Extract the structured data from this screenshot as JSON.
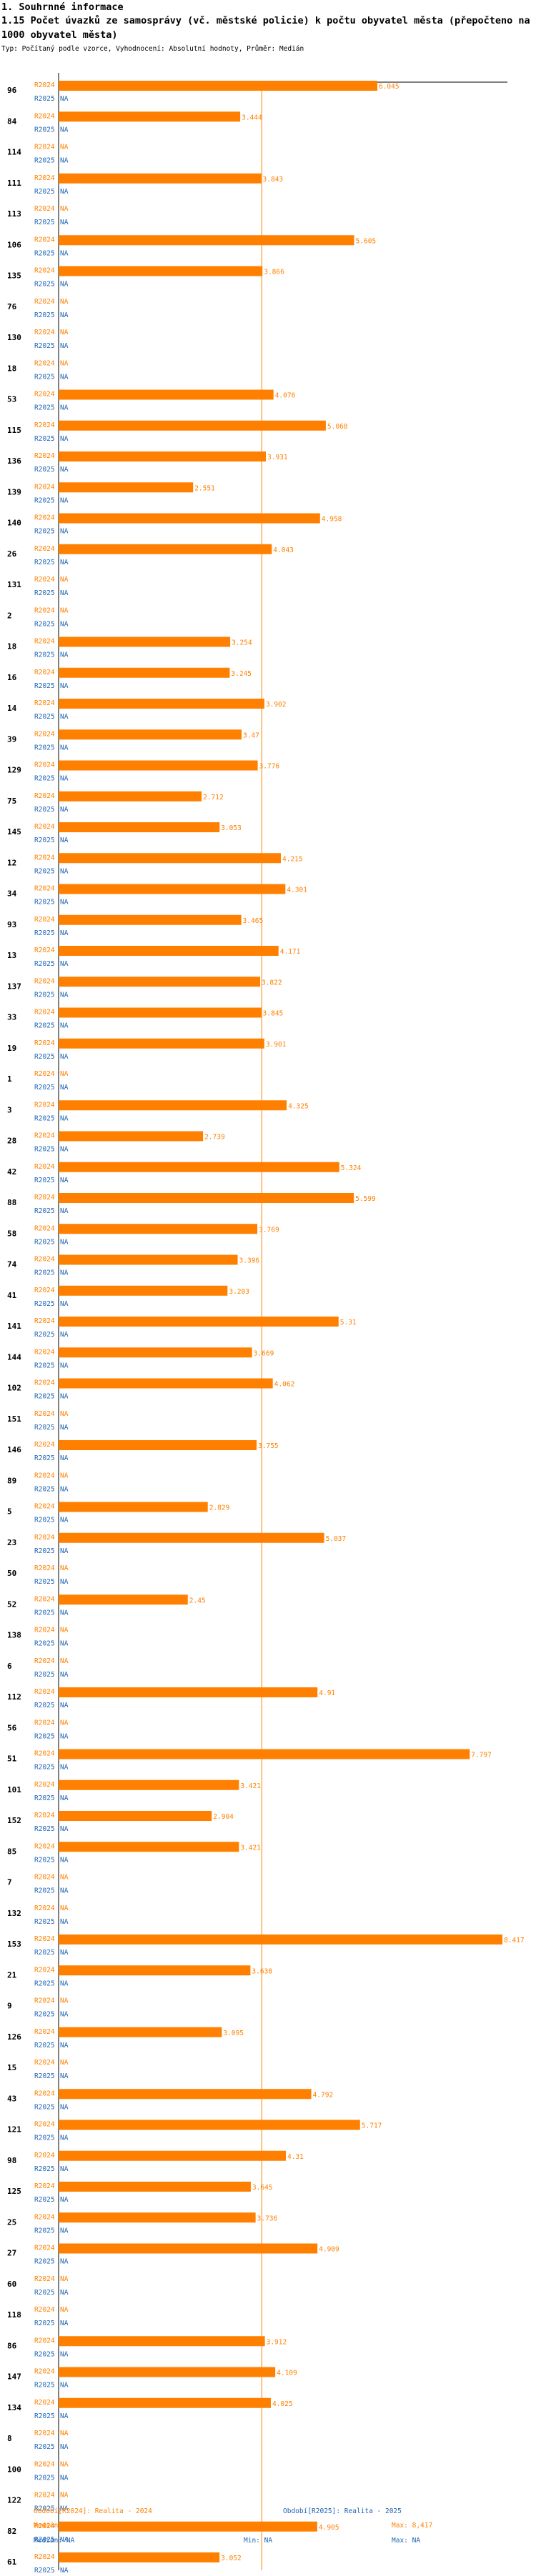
{
  "header": {
    "section": "1. Souhrnné informace",
    "title": "1.15 Počet úvazků ze samosprávy (vč. městské policie) k počtu obyvatel města (přepočteno na 1000 obyvatel města)",
    "typ": "Typ: Počítaný podle vzorce, Vyhodnocení: Absolutní hodnoty, Průměr: Medián"
  },
  "colors": {
    "r2024": "#ff8000",
    "r2025": "#1f64b4",
    "median": "#ff8000",
    "axis": "#000000"
  },
  "chart_data": {
    "type": "bar",
    "orientation": "horizontal",
    "series": [
      {
        "name": "R2024",
        "label": "R2024"
      },
      {
        "name": "R2025",
        "label": "R2025"
      }
    ],
    "xlim": [
      0,
      8.417
    ],
    "median_2024": 3.853,
    "na_label": "NA",
    "categories": [
      {
        "id": "96",
        "r2024": 6.045,
        "r2025": "NA"
      },
      {
        "id": "84",
        "r2024": 3.444,
        "r2025": "NA"
      },
      {
        "id": "114",
        "r2024": "NA",
        "r2025": "NA"
      },
      {
        "id": "111",
        "r2024": 3.843,
        "r2025": "NA"
      },
      {
        "id": "113",
        "r2024": "NA",
        "r2025": "NA"
      },
      {
        "id": "106",
        "r2024": 5.605,
        "r2025": "NA"
      },
      {
        "id": "135",
        "r2024": 3.866,
        "r2025": "NA"
      },
      {
        "id": "76",
        "r2024": "NA",
        "r2025": "NA"
      },
      {
        "id": "130",
        "r2024": "NA",
        "r2025": "NA"
      },
      {
        "id": "18",
        "r2024": "NA",
        "r2025": "NA"
      },
      {
        "id": "53",
        "r2024": 4.076,
        "r2025": "NA"
      },
      {
        "id": "115",
        "r2024": 5.068,
        "r2025": "NA"
      },
      {
        "id": "136",
        "r2024": 3.931,
        "r2025": "NA"
      },
      {
        "id": "139",
        "r2024": 2.551,
        "r2025": "NA"
      },
      {
        "id": "140",
        "r2024": 4.958,
        "r2025": "NA"
      },
      {
        "id": "26",
        "r2024": 4.043,
        "r2025": "NA"
      },
      {
        "id": "131",
        "r2024": "NA",
        "r2025": "NA"
      },
      {
        "id": "2",
        "r2024": "NA",
        "r2025": "NA"
      },
      {
        "id": "18",
        "r2024": 3.254,
        "r2025": "NA"
      },
      {
        "id": "16",
        "r2024": 3.245,
        "r2025": "NA"
      },
      {
        "id": "14",
        "r2024": 3.902,
        "r2025": "NA"
      },
      {
        "id": "39",
        "r2024": 3.47,
        "r2025": "NA"
      },
      {
        "id": "129",
        "r2024": 3.776,
        "r2025": "NA"
      },
      {
        "id": "75",
        "r2024": 2.712,
        "r2025": "NA"
      },
      {
        "id": "145",
        "r2024": 3.053,
        "r2025": "NA"
      },
      {
        "id": "12",
        "r2024": 4.215,
        "r2025": "NA"
      },
      {
        "id": "34",
        "r2024": 4.301,
        "r2025": "NA"
      },
      {
        "id": "93",
        "r2024": 3.465,
        "r2025": "NA"
      },
      {
        "id": "13",
        "r2024": 4.171,
        "r2025": "NA"
      },
      {
        "id": "137",
        "r2024": 3.822,
        "r2025": "NA"
      },
      {
        "id": "33",
        "r2024": 3.845,
        "r2025": "NA"
      },
      {
        "id": "19",
        "r2024": 3.901,
        "r2025": "NA"
      },
      {
        "id": "1",
        "r2024": "NA",
        "r2025": "NA"
      },
      {
        "id": "3",
        "r2024": 4.325,
        "r2025": "NA"
      },
      {
        "id": "28",
        "r2024": 2.739,
        "r2025": "NA"
      },
      {
        "id": "42",
        "r2024": 5.324,
        "r2025": "NA"
      },
      {
        "id": "88",
        "r2024": 5.599,
        "r2025": "NA"
      },
      {
        "id": "58",
        "r2024": 3.769,
        "r2025": "NA"
      },
      {
        "id": "74",
        "r2024": 3.396,
        "r2025": "NA"
      },
      {
        "id": "41",
        "r2024": 3.203,
        "r2025": "NA"
      },
      {
        "id": "141",
        "r2024": 5.31,
        "r2025": "NA"
      },
      {
        "id": "144",
        "r2024": 3.669,
        "r2025": "NA"
      },
      {
        "id": "102",
        "r2024": 4.062,
        "r2025": "NA"
      },
      {
        "id": "151",
        "r2024": "NA",
        "r2025": "NA"
      },
      {
        "id": "146",
        "r2024": 3.755,
        "r2025": "NA"
      },
      {
        "id": "89",
        "r2024": "NA",
        "r2025": "NA"
      },
      {
        "id": "5",
        "r2024": 2.829,
        "r2025": "NA"
      },
      {
        "id": "23",
        "r2024": 5.037,
        "r2025": "NA"
      },
      {
        "id": "50",
        "r2024": "NA",
        "r2025": "NA"
      },
      {
        "id": "52",
        "r2024": 2.45,
        "r2025": "NA"
      },
      {
        "id": "138",
        "r2024": "NA",
        "r2025": "NA"
      },
      {
        "id": "6",
        "r2024": "NA",
        "r2025": "NA"
      },
      {
        "id": "112",
        "r2024": 4.91,
        "r2025": "NA"
      },
      {
        "id": "56",
        "r2024": "NA",
        "r2025": "NA"
      },
      {
        "id": "51",
        "r2024": 7.797,
        "r2025": "NA"
      },
      {
        "id": "101",
        "r2024": 3.421,
        "r2025": "NA"
      },
      {
        "id": "152",
        "r2024": 2.904,
        "r2025": "NA"
      },
      {
        "id": "85",
        "r2024": 3.421,
        "r2025": "NA"
      },
      {
        "id": "7",
        "r2024": "NA",
        "r2025": "NA"
      },
      {
        "id": "132",
        "r2024": "NA",
        "r2025": "NA"
      },
      {
        "id": "153",
        "r2024": 8.417,
        "r2025": "NA"
      },
      {
        "id": "21",
        "r2024": 3.638,
        "r2025": "NA"
      },
      {
        "id": "9",
        "r2024": "NA",
        "r2025": "NA"
      },
      {
        "id": "126",
        "r2024": 3.095,
        "r2025": "NA"
      },
      {
        "id": "15",
        "r2024": "NA",
        "r2025": "NA"
      },
      {
        "id": "43",
        "r2024": 4.792,
        "r2025": "NA"
      },
      {
        "id": "121",
        "r2024": 5.717,
        "r2025": "NA"
      },
      {
        "id": "98",
        "r2024": 4.31,
        "r2025": "NA"
      },
      {
        "id": "125",
        "r2024": 3.645,
        "r2025": "NA"
      },
      {
        "id": "25",
        "r2024": 3.736,
        "r2025": "NA"
      },
      {
        "id": "27",
        "r2024": 4.909,
        "r2025": "NA"
      },
      {
        "id": "60",
        "r2024": "NA",
        "r2025": "NA"
      },
      {
        "id": "118",
        "r2024": "NA",
        "r2025": "NA"
      },
      {
        "id": "86",
        "r2024": 3.912,
        "r2025": "NA"
      },
      {
        "id": "147",
        "r2024": 4.109,
        "r2025": "NA"
      },
      {
        "id": "134",
        "r2024": 4.025,
        "r2025": "NA"
      },
      {
        "id": "8",
        "r2024": "NA",
        "r2025": "NA"
      },
      {
        "id": "100",
        "r2024": "NA",
        "r2025": "NA"
      },
      {
        "id": "122",
        "r2024": "NA",
        "r2025": "NA"
      },
      {
        "id": "82",
        "r2024": 4.905,
        "r2025": "NA"
      },
      {
        "id": "61",
        "r2024": 3.052,
        "r2025": "NA"
      }
    ]
  },
  "legend": {
    "r2024": {
      "title": "Období[R2024]: Realita - 2024",
      "median": "Medián: 3,853",
      "min": "Min: 2,45",
      "max": "Max: 8,417"
    },
    "r2025": {
      "title": "Období[R2025]: Realita - 2025",
      "median": "Medián: NA",
      "min": "Min: NA",
      "max": "Max: NA"
    }
  }
}
